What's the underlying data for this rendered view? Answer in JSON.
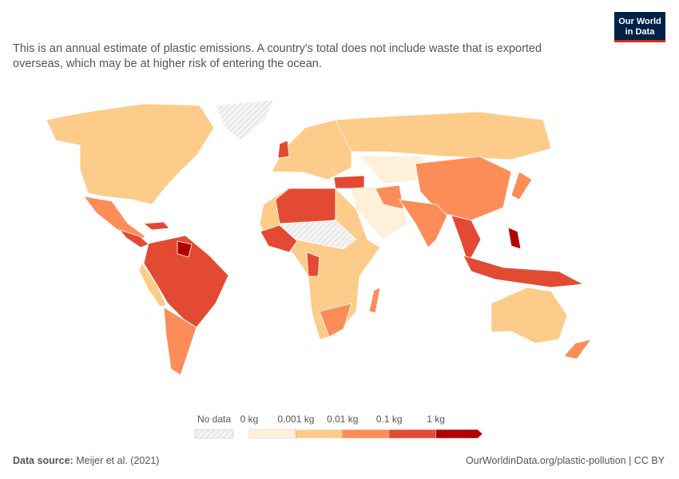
{
  "header": {
    "subtitle": "This is an annual estimate of plastic emissions. A country's total does not include waste that is exported overseas, which may be at higher risk of entering the ocean."
  },
  "logo": {
    "line1": "Our World",
    "line2": "in Data"
  },
  "legend": {
    "no_data": "No data",
    "labels": [
      "0 kg",
      "0.001 kg",
      "0.01 kg",
      "0.1 kg",
      "1 kg"
    ],
    "colors": [
      "#fef0d9",
      "#fdcc8a",
      "#fc8d59",
      "#e34a33",
      "#b30000"
    ]
  },
  "footer": {
    "source_label": "Data source:",
    "source": "Meijer et al. (2021)",
    "url": "OurWorldinData.org/plastic-pollution | CC BY"
  }
}
